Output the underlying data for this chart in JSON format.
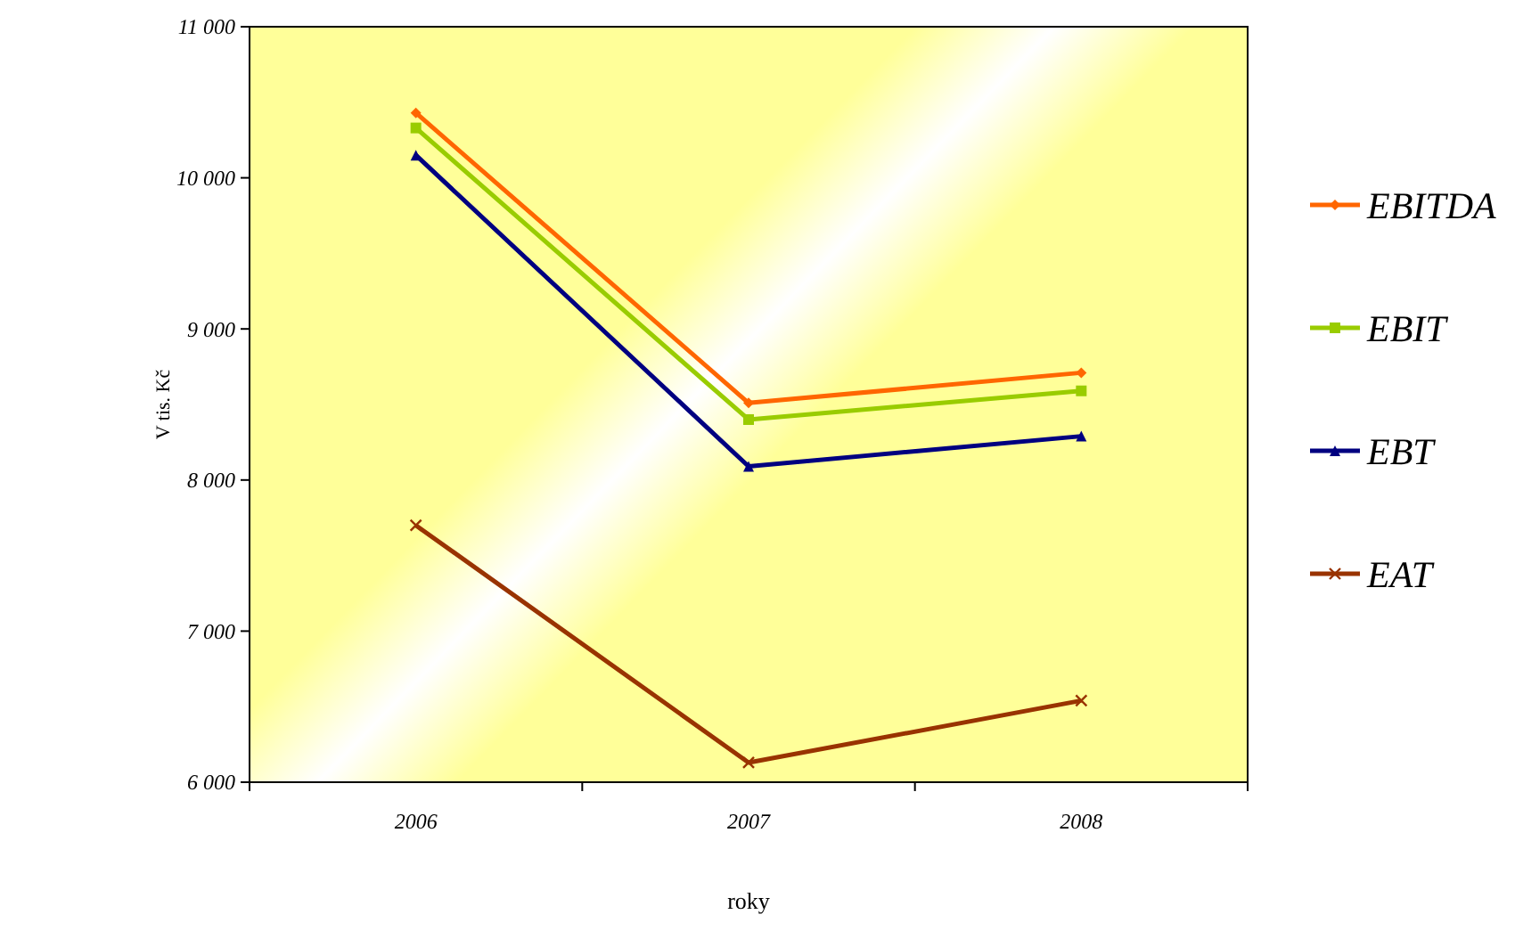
{
  "chart_data": {
    "type": "line",
    "xlabel": "roky",
    "ylabel": "V tis. Kč",
    "categories": [
      "2006",
      "2007",
      "2008"
    ],
    "series": [
      {
        "name": "EBITDA",
        "color": "#ff6600",
        "marker": "diamond",
        "values": [
          10430,
          8510,
          8710
        ]
      },
      {
        "name": "EBIT",
        "color": "#99cc00",
        "marker": "square",
        "values": [
          10330,
          8400,
          8590
        ]
      },
      {
        "name": "EBT",
        "color": "#000080",
        "marker": "triangle",
        "values": [
          10150,
          8090,
          8290
        ]
      },
      {
        "name": "EAT",
        "color": "#993300",
        "marker": "cross",
        "values": [
          7700,
          6130,
          6540
        ]
      }
    ],
    "ylim": [
      6000,
      11000
    ],
    "yticks": [
      {
        "value": 6000,
        "label": "6 000"
      },
      {
        "value": 7000,
        "label": "7 000"
      },
      {
        "value": 8000,
        "label": "8 000"
      },
      {
        "value": 9000,
        "label": "9 000"
      },
      {
        "value": 10000,
        "label": "10 000"
      },
      {
        "value": 11000,
        "label": "11 000"
      }
    ],
    "grid": false,
    "legend": "right",
    "line_style": "solid"
  }
}
